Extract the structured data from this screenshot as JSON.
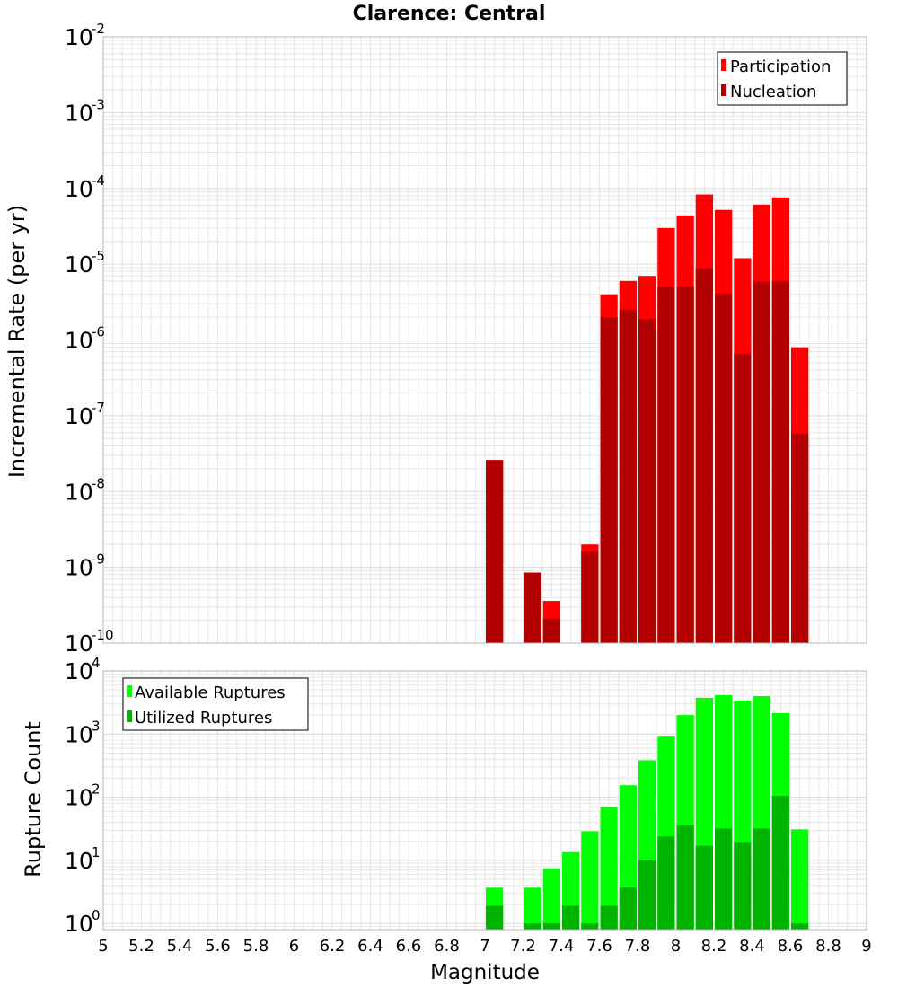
{
  "title": "Clarence: Central",
  "colors": {
    "participation": "#ff0000",
    "nucleation": "#b30000",
    "available": "#00ff00",
    "utilized": "#00b300",
    "grid": "#e6e6e6",
    "frame": "#b4b4b4"
  },
  "chart_data": [
    {
      "type": "bar",
      "panel": "top",
      "title": "Clarence: Central",
      "xlabel": "Magnitude",
      "ylabel": "Incremental Rate (per yr)",
      "xlim": [
        5,
        9
      ],
      "ylim": [
        1e-10,
        0.01
      ],
      "yscale": "log",
      "grid": true,
      "legend": "top-right",
      "bin_width": 0.1,
      "x": [
        7.05,
        7.25,
        7.35,
        7.55,
        7.65,
        7.75,
        7.85,
        7.95,
        8.05,
        8.15,
        8.25,
        8.35,
        8.45,
        8.55,
        8.65
      ],
      "series": [
        {
          "name": "Participation",
          "color": "#ff0000",
          "values": [
            2.6e-08,
            8.5e-10,
            3.6e-10,
            2e-09,
            4e-06,
            6e-06,
            7e-06,
            3e-05,
            4.4e-05,
            8.3e-05,
            5.2e-05,
            1.2e-05,
            6.1e-05,
            7.6e-05,
            8e-07
          ]
        },
        {
          "name": "Nucleation",
          "color": "#b30000",
          "values": [
            2.6e-08,
            8.5e-10,
            2.1e-10,
            1.6e-09,
            2e-06,
            2.5e-06,
            1.9e-06,
            5e-06,
            5.1e-06,
            8.8e-06,
            4.1e-06,
            6.5e-07,
            5.9e-06,
            6e-06,
            5.8e-08
          ]
        }
      ]
    },
    {
      "type": "bar",
      "panel": "bottom",
      "xlabel": "Magnitude",
      "ylabel": "Rupture Count",
      "xlim": [
        5,
        9
      ],
      "ylim": [
        0.8,
        10000
      ],
      "yscale": "log",
      "grid": true,
      "legend": "top-left",
      "bin_width": 0.1,
      "x": [
        7.05,
        7.25,
        7.35,
        7.45,
        7.55,
        7.65,
        7.75,
        7.85,
        7.95,
        8.05,
        8.15,
        8.25,
        8.35,
        8.45,
        8.55,
        8.65
      ],
      "series": [
        {
          "name": "Available Ruptures",
          "color": "#00ff00",
          "values": [
            3.7,
            3.7,
            7.5,
            13.5,
            29,
            70,
            155,
            385,
            940,
            2000,
            3750,
            4150,
            3400,
            4000,
            2150,
            31
          ]
        },
        {
          "name": "Utilized Ruptures",
          "color": "#00b300",
          "values": [
            1.9,
            1,
            1,
            1.9,
            1,
            1.9,
            3.7,
            10,
            24,
            36,
            17,
            32,
            19,
            32,
            105,
            1
          ]
        }
      ]
    }
  ],
  "x_ticks": [
    "5",
    "5.2",
    "5.4",
    "5.6",
    "5.8",
    "6",
    "6.2",
    "6.4",
    "6.6",
    "6.8",
    "7",
    "7.2",
    "7.4",
    "7.6",
    "7.8",
    "8",
    "8.2",
    "8.4",
    "8.6",
    "8.8",
    "9"
  ],
  "top_y_ticks": {
    "base": "10",
    "exponents": [
      "-10",
      "-9",
      "-8",
      "-7",
      "-6",
      "-5",
      "-4",
      "-3",
      "-2"
    ]
  },
  "bottom_y_ticks": {
    "base": "10",
    "exponents": [
      "0",
      "1",
      "2",
      "3",
      "4"
    ]
  }
}
